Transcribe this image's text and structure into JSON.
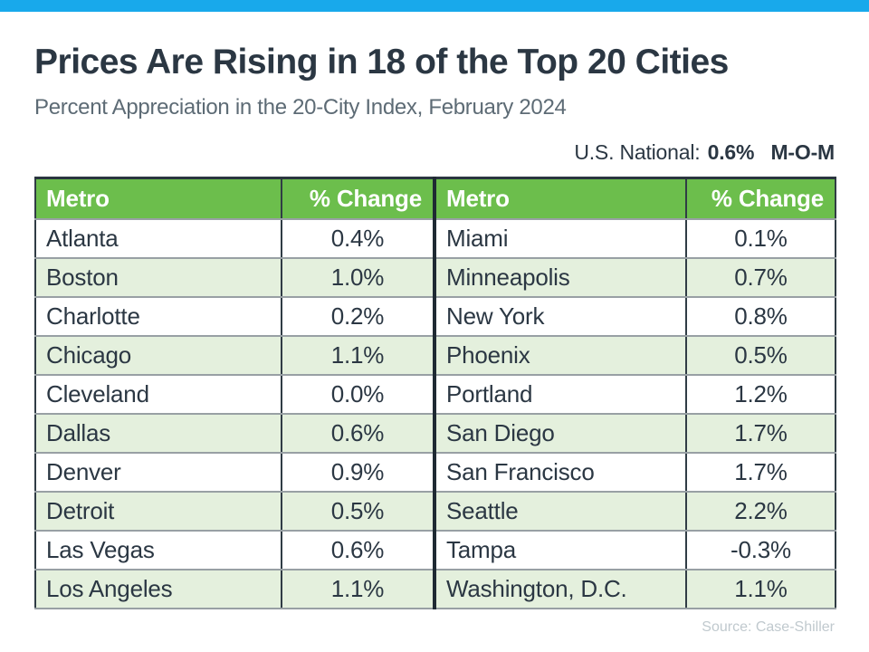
{
  "page": {
    "title": "Prices Are Rising in 18 of the Top 20 Cities",
    "subtitle": "Percent Appreciation in the 20-City Index, February 2024",
    "national_label": "U.S. National:",
    "national_value": "0.6%",
    "national_suffix": "M-O-M",
    "source": "Source: Case-Shiller"
  },
  "colors": {
    "top_bar_blue": "#18A9EB",
    "header_green": "#6CBE4C",
    "row_alt_green": "#E4F0DD",
    "dark_slate_text": "#2B3743",
    "subtitle_gray": "#5D6B75",
    "row_border_gray": "#98A0A4",
    "column_border_dark": "#303C45",
    "source_gray": "#C0C9CE"
  },
  "table": {
    "headers": [
      "Metro",
      "% Change",
      "Metro",
      "% Change"
    ],
    "rows": [
      [
        "Atlanta",
        "0.4%",
        "Miami",
        "0.1%"
      ],
      [
        "Boston",
        "1.0%",
        "Minneapolis",
        "0.7%"
      ],
      [
        "Charlotte",
        "0.2%",
        "New York",
        "0.8%"
      ],
      [
        "Chicago",
        "1.1%",
        "Phoenix",
        "0.5%"
      ],
      [
        "Cleveland",
        "0.0%",
        "Portland",
        "1.2%"
      ],
      [
        "Dallas",
        "0.6%",
        "San Diego",
        "1.7%"
      ],
      [
        "Denver",
        "0.9%",
        "San Francisco",
        "1.7%"
      ],
      [
        "Detroit",
        "0.5%",
        "Seattle",
        "2.2%"
      ],
      [
        "Las Vegas",
        "0.6%",
        "Tampa",
        "-0.3%"
      ],
      [
        "Los Angeles",
        "1.1%",
        "Washington, D.C.",
        "1.1%"
      ]
    ]
  },
  "chart_data": {
    "type": "table",
    "title": "Prices Are Rising in 18 of the Top 20 Cities",
    "subtitle": "Percent Appreciation in the 20-City Index, February 2024",
    "period": "February 2024",
    "national_mom_pct": 0.6,
    "source": "Case-Shiller",
    "columns": [
      "Metro",
      "% Change"
    ],
    "values": {
      "Atlanta": 0.4,
      "Boston": 1.0,
      "Charlotte": 0.2,
      "Chicago": 1.1,
      "Cleveland": 0.0,
      "Dallas": 0.6,
      "Denver": 0.9,
      "Detroit": 0.5,
      "Las Vegas": 0.6,
      "Los Angeles": 1.1,
      "Miami": 0.1,
      "Minneapolis": 0.7,
      "New York": 0.8,
      "Phoenix": 0.5,
      "Portland": 1.2,
      "San Diego": 1.7,
      "San Francisco": 1.7,
      "Seattle": 2.2,
      "Tampa": -0.3,
      "Washington, D.C.": 1.1
    }
  }
}
